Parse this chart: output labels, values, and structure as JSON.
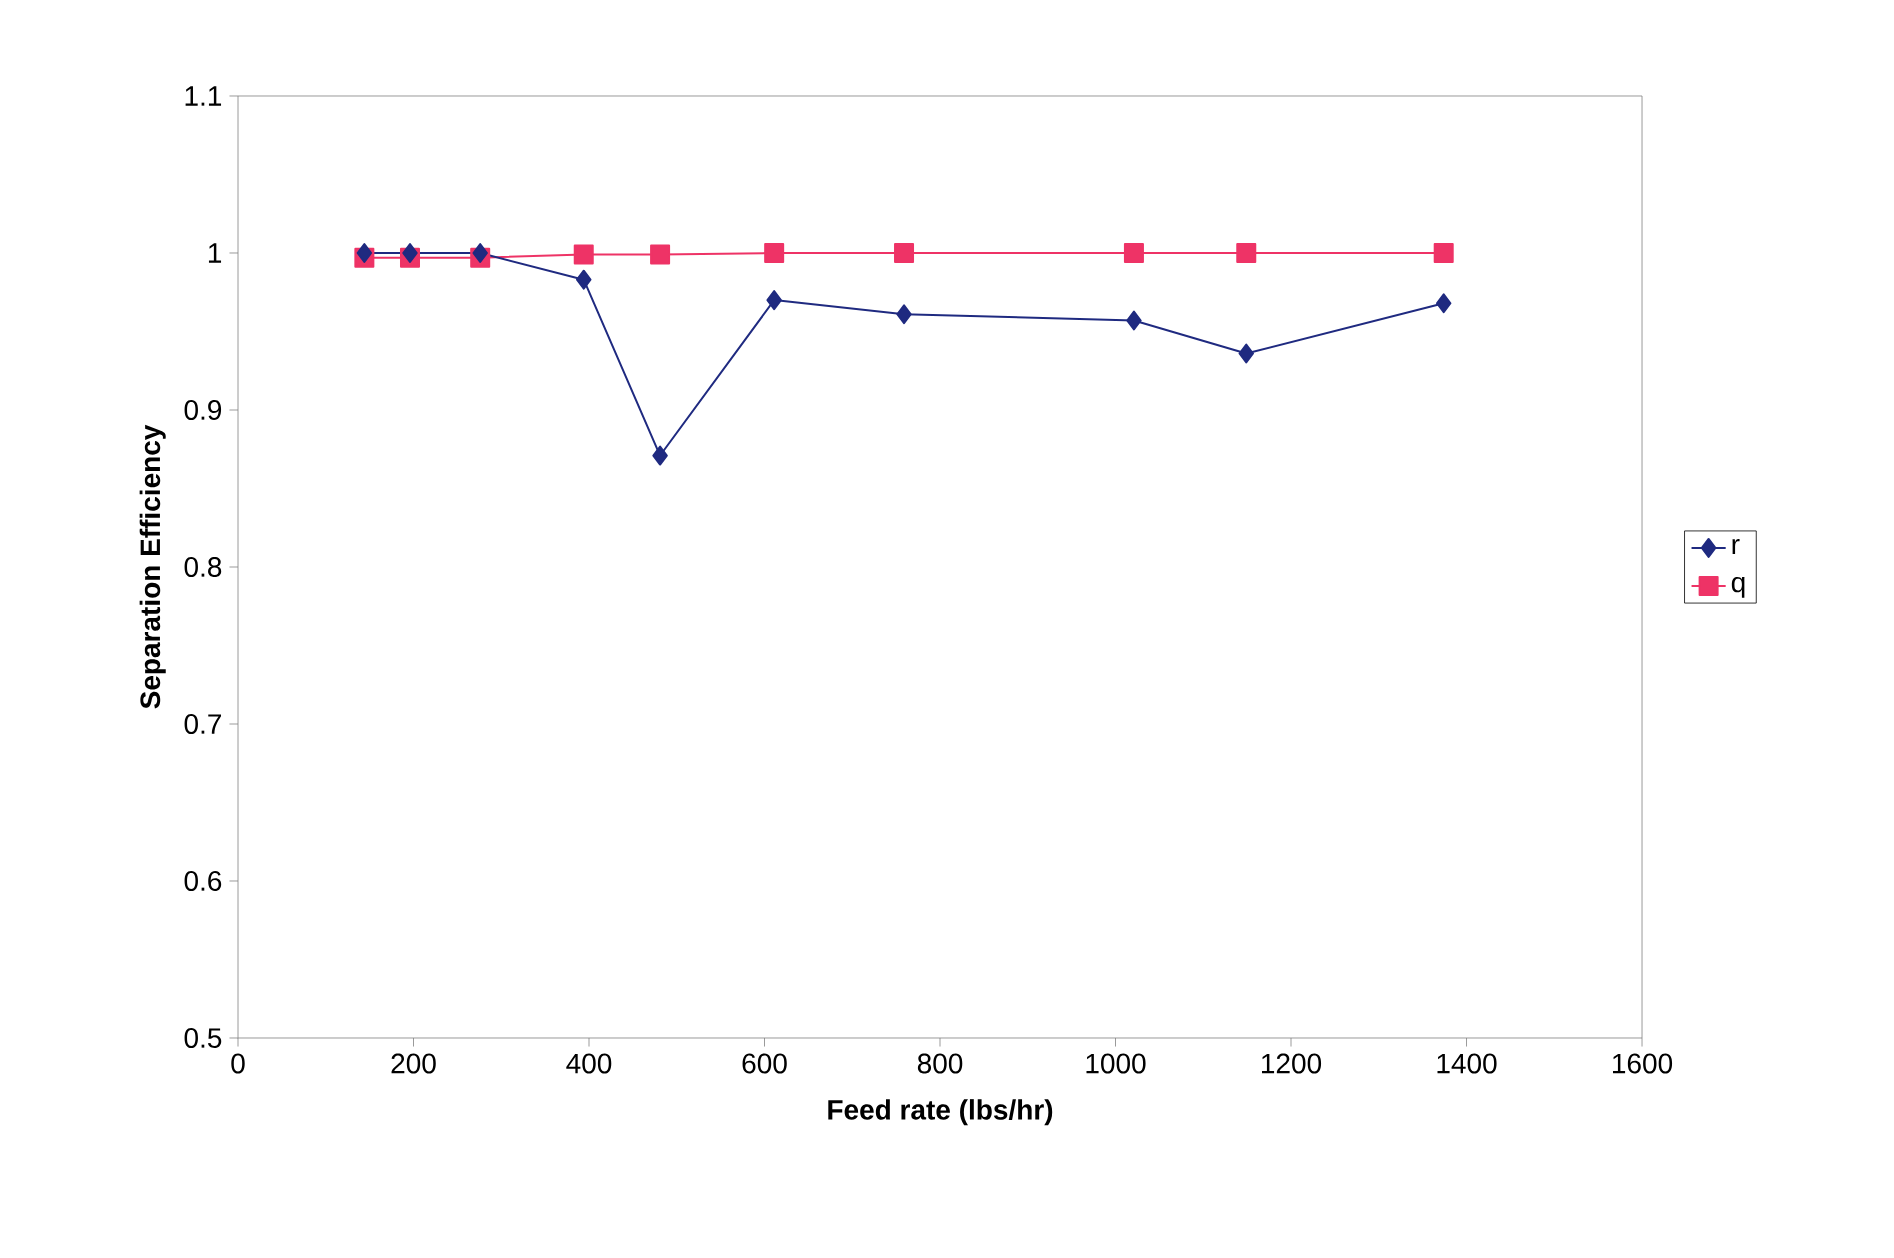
{
  "chart_data": {
    "type": "line",
    "xlabel": "Feed rate (lbs/hr)",
    "ylabel": "Separation Efficiency",
    "xlim": [
      0,
      1600
    ],
    "xticks": [
      0,
      200,
      400,
      600,
      800,
      1000,
      1200,
      1400,
      1600
    ],
    "ylim": [
      0.5,
      1.1
    ],
    "yticks": [
      0.5,
      0.6,
      0.7,
      0.8,
      0.9,
      1,
      1.1
    ],
    "grid": false,
    "legend": "right",
    "line_style": "solid",
    "series": [
      {
        "name": "r",
        "color": "#1f2a80",
        "marker": "diamond",
        "x": [
          144,
          196,
          276,
          394,
          481,
          611,
          759,
          1021,
          1149,
          1374
        ],
        "values": [
          1.0,
          1.0,
          1.0,
          0.983,
          0.871,
          0.97,
          0.961,
          0.957,
          0.936,
          0.968
        ]
      },
      {
        "name": "q",
        "color": "#ee3366",
        "marker": "square",
        "x": [
          144,
          196,
          276,
          394,
          481,
          611,
          759,
          1021,
          1149,
          1374
        ],
        "values": [
          0.997,
          0.997,
          0.997,
          0.999,
          0.999,
          1.0,
          1.0,
          1.0,
          1.0,
          1.0
        ]
      }
    ]
  }
}
